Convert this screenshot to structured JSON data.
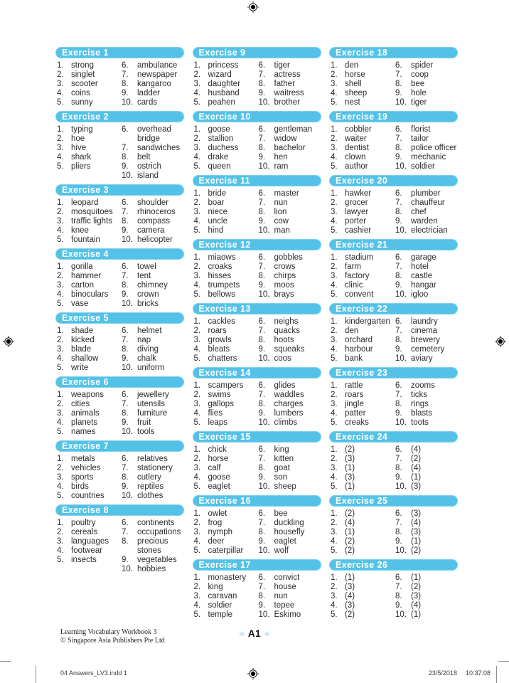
{
  "accent_color": "#54c2e7",
  "asterisk_color": "#8fd6ee",
  "numbers": [
    "1.",
    "2.",
    "3.",
    "4.",
    "5.",
    "6.",
    "7.",
    "8.",
    "9.",
    "10."
  ],
  "footer": {
    "workbook_title": "Learning Vocabulary Workbook 3",
    "copyright": "© Singapore Asia Publishers Pte Ltd",
    "page_label": "A1",
    "asterisk": "✳"
  },
  "print_strip": {
    "file_label": "04 Answers_LV3.indd   1",
    "date": "23/5/2018",
    "time": "10:37:08"
  },
  "columns": [
    {
      "exercises": [
        {
          "title": "Exercise 1",
          "items": [
            "strong",
            "singlet",
            "scooter",
            "coins",
            "sunny",
            "ambulance",
            "newspaper",
            "kangaroo",
            "ladder",
            "cards"
          ]
        },
        {
          "title": "Exercise 2",
          "items": [
            "typing",
            "hoe",
            "hive",
            "shark",
            "pliers",
            "overhead\nbridge",
            "sandwiches",
            "belt",
            "ostrich",
            "island"
          ]
        },
        {
          "title": "Exercise 3",
          "items": [
            "leopard",
            "mosquitoes",
            "traffic lights",
            "knee",
            "fountain",
            "shoulder",
            "rhinoceros",
            "compass",
            "camera",
            "helicopter"
          ]
        },
        {
          "title": "Exercise 4",
          "items": [
            "gorilla",
            "hammer",
            "carton",
            "binoculars",
            "vase",
            "towel",
            "tent",
            "chimney",
            "crown",
            "bricks"
          ]
        },
        {
          "title": "Exercise 5",
          "items": [
            "shade",
            "kicked",
            "blade",
            "shallow",
            "write",
            "helmet",
            "nap",
            "diving",
            "chalk",
            "uniform"
          ]
        },
        {
          "title": "Exercise 6",
          "items": [
            "weapons",
            "cities",
            "animals",
            "planets",
            "names",
            "jewellery",
            "utensils",
            "furniture",
            "fruit",
            "tools"
          ]
        },
        {
          "title": "Exercise 7",
          "items": [
            "metals",
            "vehicles",
            "sports",
            "birds",
            "countries",
            "relatives",
            "stationery",
            "cutlery",
            "reptiles",
            "clothes"
          ]
        },
        {
          "title": "Exercise 8",
          "items": [
            "poultry",
            "cereals",
            "languages",
            "footwear",
            "insects",
            "continents",
            "occupations",
            "precious\nstones",
            "vegetables",
            "hobbies"
          ]
        }
      ]
    },
    {
      "exercises": [
        {
          "title": "Exercise 9",
          "items": [
            "princess",
            "wizard",
            "daughter",
            "husband",
            "peahen",
            "tiger",
            "actress",
            "father",
            "waitress",
            "brother"
          ]
        },
        {
          "title": "Exercise 10",
          "items": [
            "goose",
            "stallion",
            "duchess",
            "drake",
            "queen",
            "gentleman",
            "widow",
            "bachelor",
            "hen",
            "ram"
          ]
        },
        {
          "title": "Exercise 11",
          "items": [
            "bride",
            "boar",
            "niece",
            "uncle",
            "hind",
            "master",
            "nun",
            "lion",
            "cow",
            "man"
          ]
        },
        {
          "title": "Exercise 12",
          "items": [
            "miaows",
            "croaks",
            "hisses",
            "trumpets",
            "bellows",
            "gobbles",
            "crows",
            "chirps",
            "moos",
            "brays"
          ]
        },
        {
          "title": "Exercise 13",
          "items": [
            "cackles",
            "roars",
            "growls",
            "bleats",
            "chatters",
            "neighs",
            "quacks",
            "hoots",
            "squeaks",
            "coos"
          ]
        },
        {
          "title": "Exercise 14",
          "items": [
            "scampers",
            "swims",
            "gallops",
            "flies",
            "leaps",
            "glides",
            "waddles",
            "charges",
            "lumbers",
            "climbs"
          ]
        },
        {
          "title": "Exercise 15",
          "items": [
            "chick",
            "horse",
            "calf",
            "goose",
            "eaglet",
            "king",
            "kitten",
            "goat",
            "son",
            "sheep"
          ]
        },
        {
          "title": "Exercise 16",
          "items": [
            "owlet",
            "frog",
            "nymph",
            "deer",
            "caterpillar",
            "bee",
            "duckling",
            "housefly",
            "eaglet",
            "wolf"
          ]
        },
        {
          "title": "Exercise 17",
          "items": [
            "monastery",
            "king",
            "caravan",
            "soldier",
            "temple",
            "convict",
            "house",
            "nun",
            "tepee",
            "Eskimo"
          ]
        }
      ]
    },
    {
      "exercises": [
        {
          "title": "Exercise 18",
          "items": [
            "den",
            "horse",
            "shell",
            "sheep",
            "nest",
            "spider",
            "coop",
            "bee",
            "hole",
            "tiger"
          ]
        },
        {
          "title": "Exercise 19",
          "items": [
            "cobbler",
            "waiter",
            "dentist",
            "clown",
            "author",
            "florist",
            "tailor",
            "police officer",
            "mechanic",
            "soldier"
          ]
        },
        {
          "title": "Exercise 20",
          "items": [
            "hawker",
            "grocer",
            "lawyer",
            "porter",
            "cashier",
            "plumber",
            "chauffeur",
            "chef",
            "warden",
            "electrician"
          ]
        },
        {
          "title": "Exercise 21",
          "items": [
            "stadium",
            "farm",
            "factory",
            "clinic",
            "convent",
            "garage",
            "hotel",
            "castle",
            "hangar",
            "igloo"
          ]
        },
        {
          "title": "Exercise 22",
          "items": [
            "kindergarten",
            "den",
            "orchard",
            "harbour",
            "bank",
            "laundry",
            "cinema",
            "brewery",
            "cemetery",
            "aviary"
          ]
        },
        {
          "title": "Exercise 23",
          "items": [
            "rattle",
            "roars",
            "jingle",
            "patter",
            "creaks",
            "zooms",
            "ticks",
            "rings",
            "blasts",
            "toots"
          ]
        },
        {
          "title": "Exercise 24",
          "items": [
            "(2)",
            "(3)",
            "(1)",
            "(3)",
            "(1)",
            "(4)",
            "(2)",
            "(4)",
            "(1)",
            "(3)"
          ]
        },
        {
          "title": "Exercise 25",
          "items": [
            "(2)",
            "(4)",
            "(1)",
            "(2)",
            "(2)",
            "(3)",
            "(4)",
            "(3)",
            "(1)",
            "(2)"
          ]
        },
        {
          "title": "Exercise 26",
          "items": [
            "(1)",
            "(3)",
            "(4)",
            "(3)",
            "(2)",
            "(1)",
            "(2)",
            "(3)",
            "(4)",
            "(1)"
          ]
        }
      ]
    }
  ]
}
